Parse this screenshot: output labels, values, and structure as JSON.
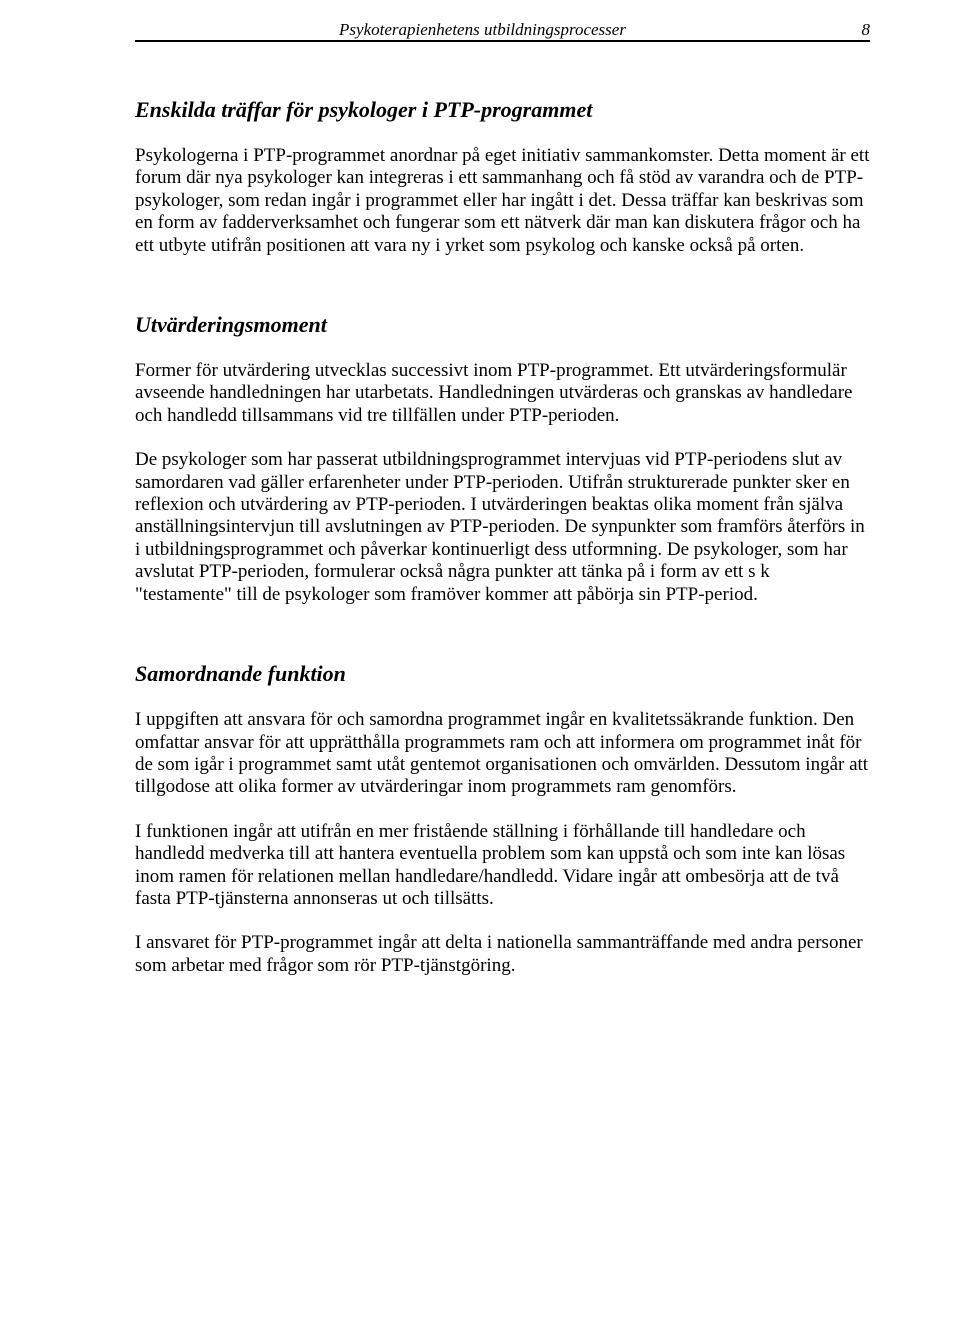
{
  "header": {
    "title": "Psykoterapienhetens utbildningsprocesser",
    "page_number": "8"
  },
  "section1": {
    "heading": "Enskilda träffar för psykologer i PTP-programmet",
    "para1": "Psykologerna i PTP-programmet anordnar på eget initiativ sammankomster. Detta moment är ett forum där nya psykologer kan integreras i ett sammanhang och få stöd av varandra och de PTP-psykologer, som redan ingår i programmet eller har ingått i det. Dessa träffar kan beskrivas som en form av fadderverksamhet och fungerar som ett nätverk där man kan diskutera frågor och ha ett utbyte utifrån positionen att vara ny i yrket som psykolog och kanske också på orten."
  },
  "section2": {
    "heading": "Utvärderingsmoment",
    "para1": "Former för utvärdering utvecklas successivt inom PTP-programmet. Ett utvärderingsformulär avseende handledningen har utarbetats. Handledningen utvärderas och granskas av handledare och handledd tillsammans vid tre tillfällen under PTP-perioden.",
    "para2": "De psykologer som har passerat utbildningsprogrammet intervjuas vid PTP-periodens slut av samordaren vad gäller erfarenheter under PTP-perioden. Utifrån strukturerade punkter sker en reflexion och utvärdering av PTP-perioden. I utvärderingen beaktas olika moment från själva anställningsintervjun till avslutningen av PTP-perioden. De synpunkter som framförs återförs in i utbildningsprogrammet och påverkar kontinuerligt dess utformning. De psykologer, som har avslutat PTP-perioden, formulerar också några punkter att tänka på i form av ett s k \"testamente\" till de psykologer som framöver kommer att påbörja sin PTP-period."
  },
  "section3": {
    "heading": "Samordnande funktion",
    "para1": "I uppgiften att ansvara för och samordna programmet ingår en kvalitetssäkrande funktion. Den omfattar ansvar för att upprätthålla programmets ram och att informera om programmet inåt för de som igår i programmet samt utåt gentemot organisationen och omvärlden. Dessutom ingår att tillgodose att olika former av utvärderingar inom programmets ram genomförs.",
    "para2": "I funktionen ingår att utifrån en mer fristående ställning i förhållande till handledare och handledd medverka till att hantera eventuella problem som kan uppstå och som inte kan lösas inom ramen för relationen mellan handledare/handledd. Vidare ingår att ombesörja att de två fasta PTP-tjänsterna annonseras ut och tillsätts.",
    "para3": "I ansvaret för PTP-programmet ingår att delta i nationella sammanträffande med andra personer som arbetar med frågor som rör PTP-tjänstgöring."
  }
}
